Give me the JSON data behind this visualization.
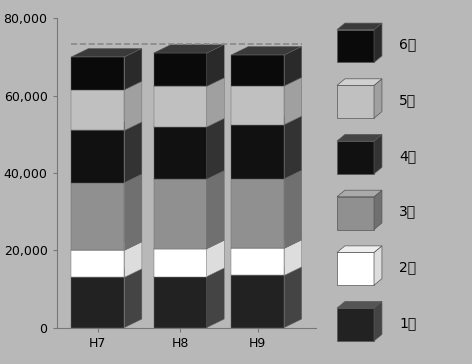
{
  "categories": [
    "H7",
    "H8",
    "H9"
  ],
  "grades": [
    "1級",
    "2級",
    "3級",
    "4級",
    "5級",
    "6級"
  ],
  "values": {
    "1級": [
      13000,
      13200,
      13500
    ],
    "2級": [
      7000,
      7200,
      7000
    ],
    "3級": [
      17500,
      18000,
      18000
    ],
    "4級": [
      13500,
      13500,
      14000
    ],
    "5級": [
      10500,
      10500,
      10000
    ],
    "6級": [
      8500,
      8600,
      8000
    ]
  },
  "front_colors": {
    "1級": "#222222",
    "2級": "#ffffff",
    "3級": "#909090",
    "4級": "#111111",
    "5級": "#c0c0c0",
    "6級": "#0a0a0a"
  },
  "side_colors": {
    "1級": "#444444",
    "2級": "#dddddd",
    "3級": "#707070",
    "4級": "#333333",
    "5級": "#a0a0a0",
    "6級": "#2a2a2a"
  },
  "top_colors": {
    "1級": "#555555",
    "2級": "#eeeeee",
    "3級": "#aaaaaa",
    "4級": "#444444",
    "5級": "#d0d0d0",
    "6級": "#3a3a3a"
  },
  "ylim": [
    0,
    80000
  ],
  "yticks": [
    0,
    20000,
    40000,
    60000,
    80000
  ],
  "ytick_labels": [
    "0",
    "20,000",
    "40,000",
    "60,000",
    "80,000"
  ],
  "dashed_line_y": 71000,
  "background_color": "#b8b8b8",
  "legend_bg": "#b0b0b0",
  "tick_fontsize": 9,
  "label_fontsize": 10
}
